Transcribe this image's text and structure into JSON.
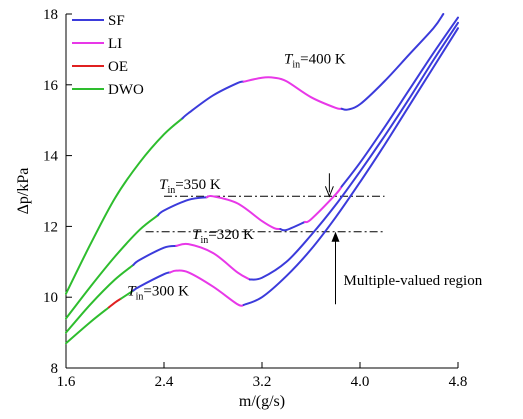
{
  "chart_data": {
    "type": "line",
    "xlabel": "m/(g/s)",
    "ylabel": "Δp/kPa",
    "xlim": [
      1.6,
      4.8
    ],
    "ylim": [
      8,
      18
    ],
    "xticks": [
      1.6,
      2.4,
      3.2,
      4.0,
      4.8
    ],
    "xtick_labels": [
      "1.6",
      "2.4",
      "3.2",
      "4.0",
      "4.8"
    ],
    "yticks": [
      8,
      10,
      12,
      14,
      16,
      18
    ],
    "ytick_labels": [
      "8",
      "10",
      "12",
      "14",
      "16",
      "18"
    ],
    "grid": false,
    "legend_position": "top-left",
    "legend": [
      {
        "label": "SF",
        "color": "#3b3bdb"
      },
      {
        "label": "LI",
        "color": "#e838e8"
      },
      {
        "label": "OE",
        "color": "#e02020"
      },
      {
        "label": "DWO",
        "color": "#2ebd2e"
      }
    ],
    "series": [
      {
        "name": "T_in=400 K",
        "label_main": "T",
        "label_sub": "in",
        "label_rest": "=400 K",
        "points": [
          [
            1.6,
            10.1
          ],
          [
            1.8,
            11.5
          ],
          [
            2.0,
            12.8
          ],
          [
            2.2,
            13.8
          ],
          [
            2.4,
            14.6
          ],
          [
            2.6,
            15.2
          ],
          [
            2.8,
            15.7
          ],
          [
            3.0,
            16.05
          ],
          [
            3.2,
            16.2
          ],
          [
            3.3,
            16.2
          ],
          [
            3.4,
            16.1
          ],
          [
            3.6,
            15.65
          ],
          [
            3.8,
            15.35
          ],
          [
            3.9,
            15.3
          ],
          [
            4.0,
            15.45
          ],
          [
            4.2,
            16.1
          ],
          [
            4.4,
            16.85
          ],
          [
            4.6,
            17.6
          ],
          [
            4.68,
            18.0
          ]
        ],
        "segments": [
          {
            "mode": "DWO",
            "x_from": 1.6,
            "x_to": 2.55
          },
          {
            "mode": "SF",
            "x_from": 2.55,
            "x_to": 3.05
          },
          {
            "mode": "LI",
            "x_from": 3.05,
            "x_to": 3.85
          },
          {
            "mode": "SF",
            "x_from": 3.85,
            "x_to": 4.68
          }
        ]
      },
      {
        "name": "T_in=350 K",
        "label_main": "T",
        "label_sub": "in",
        "label_rest": "=350 K",
        "points": [
          [
            1.6,
            9.4
          ],
          [
            1.8,
            10.3
          ],
          [
            2.0,
            11.15
          ],
          [
            2.2,
            11.9
          ],
          [
            2.4,
            12.45
          ],
          [
            2.6,
            12.75
          ],
          [
            2.8,
            12.85
          ],
          [
            3.0,
            12.65
          ],
          [
            3.2,
            12.15
          ],
          [
            3.3,
            11.95
          ],
          [
            3.4,
            11.9
          ],
          [
            3.6,
            12.2
          ],
          [
            3.8,
            12.9
          ],
          [
            4.0,
            13.8
          ],
          [
            4.2,
            14.8
          ],
          [
            4.4,
            15.85
          ],
          [
            4.6,
            16.9
          ],
          [
            4.8,
            17.9
          ]
        ],
        "segments": [
          {
            "mode": "DWO",
            "x_from": 1.6,
            "x_to": 2.35
          },
          {
            "mode": "SF",
            "x_from": 2.35,
            "x_to": 2.75
          },
          {
            "mode": "LI",
            "x_from": 2.75,
            "x_to": 3.35
          },
          {
            "mode": "SF",
            "x_from": 3.35,
            "x_to": 3.55
          },
          {
            "mode": "LI",
            "x_from": 3.55,
            "x_to": 3.85
          },
          {
            "mode": "SF",
            "x_from": 3.85,
            "x_to": 4.8
          }
        ]
      },
      {
        "name": "T_in=320 K",
        "label_main": "T",
        "label_sub": "in",
        "label_rest": "=320 K",
        "points": [
          [
            1.6,
            9.0
          ],
          [
            1.8,
            9.8
          ],
          [
            2.0,
            10.5
          ],
          [
            2.2,
            11.05
          ],
          [
            2.4,
            11.4
          ],
          [
            2.6,
            11.5
          ],
          [
            2.8,
            11.25
          ],
          [
            3.0,
            10.7
          ],
          [
            3.1,
            10.5
          ],
          [
            3.2,
            10.55
          ],
          [
            3.4,
            11.0
          ],
          [
            3.6,
            11.75
          ],
          [
            3.8,
            12.6
          ],
          [
            4.0,
            13.55
          ],
          [
            4.2,
            14.55
          ],
          [
            4.4,
            15.6
          ],
          [
            4.6,
            16.7
          ],
          [
            4.8,
            17.75
          ]
        ],
        "segments": [
          {
            "mode": "DWO",
            "x_from": 1.6,
            "x_to": 2.15
          },
          {
            "mode": "SF",
            "x_from": 2.15,
            "x_to": 2.5
          },
          {
            "mode": "LI",
            "x_from": 2.5,
            "x_to": 3.1
          },
          {
            "mode": "SF",
            "x_from": 3.1,
            "x_to": 4.8
          }
        ]
      },
      {
        "name": "T_in=300 K",
        "label_main": "T",
        "label_sub": "in",
        "label_rest": "=300 K",
        "points": [
          [
            1.6,
            8.7
          ],
          [
            1.8,
            9.3
          ],
          [
            2.0,
            9.85
          ],
          [
            2.2,
            10.3
          ],
          [
            2.4,
            10.65
          ],
          [
            2.5,
            10.75
          ],
          [
            2.6,
            10.7
          ],
          [
            2.8,
            10.3
          ],
          [
            3.0,
            9.8
          ],
          [
            3.05,
            9.78
          ],
          [
            3.2,
            10.0
          ],
          [
            3.4,
            10.6
          ],
          [
            3.6,
            11.35
          ],
          [
            3.8,
            12.25
          ],
          [
            4.0,
            13.25
          ],
          [
            4.2,
            14.3
          ],
          [
            4.4,
            15.4
          ],
          [
            4.6,
            16.5
          ],
          [
            4.8,
            17.6
          ]
        ],
        "segments": [
          {
            "mode": "DWO",
            "x_from": 1.6,
            "x_to": 1.95
          },
          {
            "mode": "OE",
            "x_from": 1.95,
            "x_to": 2.05
          },
          {
            "mode": "DWO",
            "x_from": 2.05,
            "x_to": 2.15
          },
          {
            "mode": "SF",
            "x_from": 2.15,
            "x_to": 2.45
          },
          {
            "mode": "LI",
            "x_from": 2.45,
            "x_to": 3.05
          },
          {
            "mode": "SF",
            "x_from": 3.05,
            "x_to": 4.8
          }
        ]
      }
    ],
    "reference_lines": [
      {
        "y": 12.85,
        "x_from": 2.4,
        "x_to": 4.2,
        "style": "dash-dot"
      },
      {
        "y": 11.85,
        "x_from": 2.25,
        "x_to": 4.2,
        "style": "dash-dot"
      }
    ],
    "annotations": [
      {
        "text": "Multiple-valued region",
        "arrow_x": 3.8,
        "arrow_from_y": 9.8,
        "arrow_to_y": 11.85,
        "down_arrow_x": 3.75,
        "down_arrow_from_y": 13.5,
        "down_arrow_to_y": 12.85
      }
    ]
  }
}
